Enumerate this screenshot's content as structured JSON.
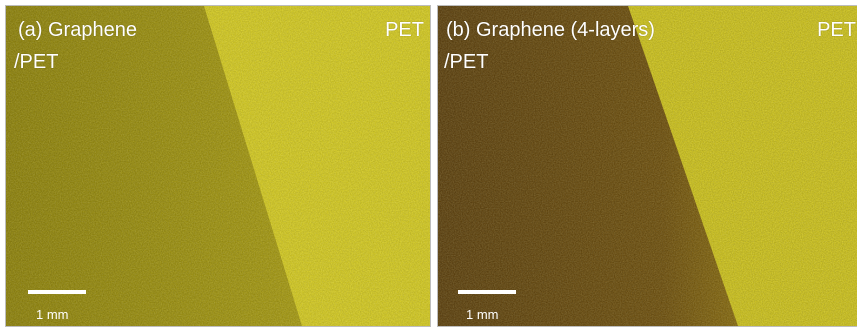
{
  "panels": [
    {
      "title": "(a)  Graphene",
      "title2": "/PET",
      "right_label": "PET",
      "scale_label": "1 mm",
      "colors": {
        "dark": "#8d8000",
        "light": "#dcd11a"
      }
    },
    {
      "title": "(b) Graphene (4-layers)",
      "title2": "/PET",
      "right_label": "PET",
      "scale_label": "1 mm",
      "colors": {
        "dark": "#5a3a06",
        "light": "#d8cc18"
      }
    }
  ]
}
